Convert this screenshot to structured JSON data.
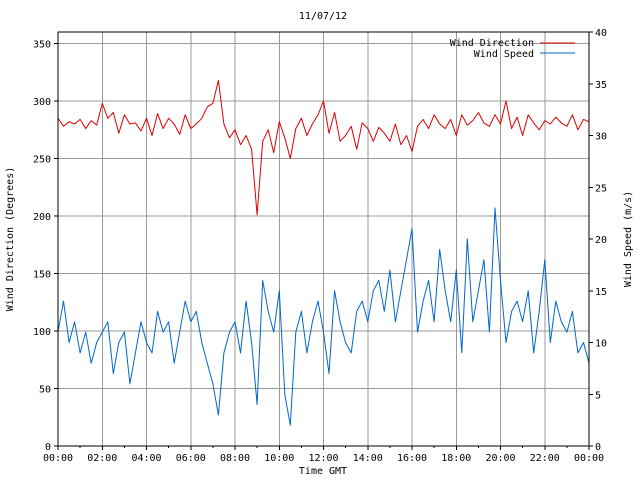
{
  "chart_data": {
    "type": "line",
    "title": "11/07/12",
    "xlabel": "Time GMT",
    "ylabel_left": "Wind Direction (Degrees)",
    "ylabel_right": "Wind Speed (m/s)",
    "x_tick_labels": [
      "00:00",
      "02:00",
      "04:00",
      "06:00",
      "08:00",
      "10:00",
      "12:00",
      "14:00",
      "16:00",
      "18:00",
      "20:00",
      "22:00",
      "00:00"
    ],
    "y_left_ticks": [
      0,
      50,
      100,
      150,
      200,
      250,
      300,
      350
    ],
    "y_right_ticks": [
      0,
      5,
      10,
      15,
      20,
      25,
      30,
      35,
      40
    ],
    "xlim_hours": [
      0,
      24
    ],
    "ylim_left": [
      0,
      360
    ],
    "ylim_right": [
      0,
      40
    ],
    "grid": true,
    "legend_position": "top-right",
    "colors": {
      "wind_direction": "#dd0000",
      "wind_speed": "#0066cc",
      "grid": "#9a9a9a"
    },
    "series": [
      {
        "name": "Wind Direction",
        "axis": "left",
        "x_hours": [
          0,
          0.25,
          0.5,
          0.75,
          1,
          1.25,
          1.5,
          1.75,
          2,
          2.25,
          2.5,
          2.75,
          3,
          3.25,
          3.5,
          3.75,
          4,
          4.25,
          4.5,
          4.75,
          5,
          5.25,
          5.5,
          5.75,
          6,
          6.25,
          6.5,
          6.75,
          7,
          7.25,
          7.5,
          7.75,
          8,
          8.25,
          8.5,
          8.75,
          9,
          9.25,
          9.5,
          9.75,
          10,
          10.25,
          10.5,
          10.75,
          11,
          11.25,
          11.5,
          11.75,
          12,
          12.25,
          12.5,
          12.75,
          13,
          13.25,
          13.5,
          13.75,
          14,
          14.25,
          14.5,
          14.75,
          15,
          15.25,
          15.5,
          15.75,
          16,
          16.25,
          16.5,
          16.75,
          17,
          17.25,
          17.5,
          17.75,
          18,
          18.25,
          18.5,
          18.75,
          19,
          19.25,
          19.5,
          19.75,
          20,
          20.25,
          20.5,
          20.75,
          21,
          21.25,
          21.5,
          21.75,
          22,
          22.25,
          22.5,
          22.75,
          23,
          23.25,
          23.5,
          23.75,
          24
        ],
        "values": [
          285,
          278,
          282,
          280,
          284,
          276,
          283,
          279,
          298,
          285,
          290,
          272,
          288,
          280,
          281,
          274,
          285,
          270,
          289,
          276,
          285,
          280,
          271,
          288,
          276,
          280,
          285,
          295,
          298,
          318,
          280,
          268,
          275,
          262,
          270,
          258,
          201,
          265,
          275,
          255,
          282,
          268,
          250,
          276,
          285,
          270,
          280,
          288,
          300,
          272,
          290,
          265,
          270,
          278,
          258,
          281,
          276,
          265,
          277,
          272,
          265,
          280,
          262,
          270,
          256,
          278,
          284,
          276,
          288,
          280,
          276,
          284,
          270,
          288,
          279,
          283,
          290,
          281,
          278,
          288,
          280,
          300,
          276,
          286,
          270,
          288,
          281,
          275,
          283,
          280,
          286,
          281,
          278,
          288,
          275,
          284,
          282
        ]
      },
      {
        "name": "Wind Speed",
        "axis": "right",
        "x_hours": [
          0,
          0.25,
          0.5,
          0.75,
          1,
          1.25,
          1.5,
          1.75,
          2,
          2.25,
          2.5,
          2.75,
          3,
          3.25,
          3.5,
          3.75,
          4,
          4.25,
          4.5,
          4.75,
          5,
          5.25,
          5.5,
          5.75,
          6,
          6.25,
          6.5,
          6.75,
          7,
          7.25,
          7.5,
          7.75,
          8,
          8.25,
          8.5,
          8.75,
          9,
          9.25,
          9.5,
          9.75,
          10,
          10.25,
          10.5,
          10.75,
          11,
          11.25,
          11.5,
          11.75,
          12,
          12.25,
          12.5,
          12.75,
          13,
          13.25,
          13.5,
          13.75,
          14,
          14.25,
          14.5,
          14.75,
          15,
          15.25,
          15.5,
          15.75,
          16,
          16.25,
          16.5,
          16.75,
          17,
          17.25,
          17.5,
          17.75,
          18,
          18.25,
          18.5,
          18.75,
          19,
          19.25,
          19.5,
          19.75,
          20,
          20.25,
          20.5,
          20.75,
          21,
          21.25,
          21.5,
          21.75,
          22,
          22.25,
          22.5,
          22.75,
          23,
          23.25,
          23.5,
          23.75,
          24
        ],
        "values": [
          11,
          14,
          10,
          12,
          9,
          11,
          8,
          10,
          11,
          12,
          7,
          10,
          11,
          6,
          9,
          12,
          10,
          9,
          13,
          11,
          12,
          8,
          11,
          14,
          12,
          13,
          10,
          8,
          6,
          3,
          9,
          11,
          12,
          9,
          14,
          10,
          4,
          16,
          13,
          11,
          15,
          5,
          2,
          11,
          13,
          9,
          12,
          14,
          11,
          7,
          15,
          12,
          10,
          9,
          13,
          14,
          12,
          15,
          16,
          13,
          17,
          12,
          15,
          18,
          21,
          11,
          14,
          16,
          12,
          19,
          15,
          12,
          17,
          9,
          20,
          12,
          15,
          18,
          11,
          23,
          16,
          10,
          13,
          14,
          12,
          15,
          9,
          13,
          18,
          10,
          14,
          12,
          11,
          13,
          9,
          10,
          8
        ]
      }
    ]
  }
}
